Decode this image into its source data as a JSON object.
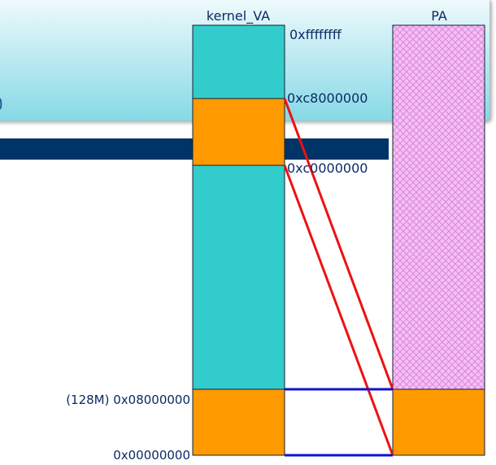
{
  "columns": {
    "kernel_va": {
      "label": "kernel_VA"
    },
    "pa": {
      "label": "PA"
    }
  },
  "addresses": {
    "top": "0xffffffff",
    "c8": "0xc8000000",
    "c0": "0xc0000000",
    "mark_128m": "(128M) 0x08000000",
    "zero": "0x00000000"
  },
  "colors": {
    "teal": "#33cccc",
    "orange": "#ff9900",
    "pa_fill": "#f4b8f4",
    "pa_pattern": "#d98ad9",
    "banner_top": "#e9f7fb",
    "banner_bottom": "#8fdce8",
    "dark_bar": "#003366",
    "red": "#ee1111",
    "blue": "#1111cc"
  }
}
